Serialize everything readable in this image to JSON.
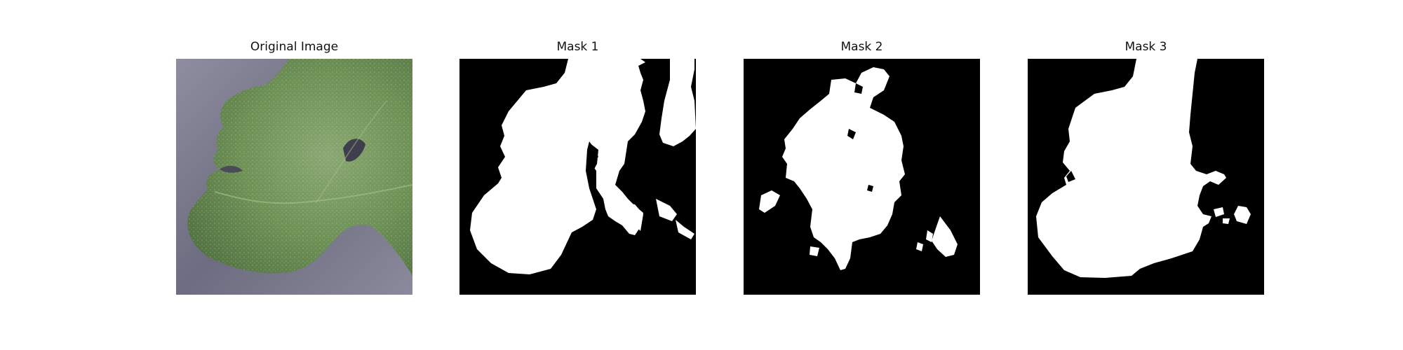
{
  "panels": [
    {
      "title": "Original Image",
      "kind": "photo"
    },
    {
      "title": "Mask 1",
      "kind": "mask"
    },
    {
      "title": "Mask 2",
      "kind": "mask"
    },
    {
      "title": "Mask 3",
      "kind": "mask"
    }
  ],
  "colors": {
    "mask_background": "#000000",
    "mask_foreground": "#ffffff",
    "photo_background": "#6f6d80",
    "leaf_green": "#6b8f52"
  }
}
